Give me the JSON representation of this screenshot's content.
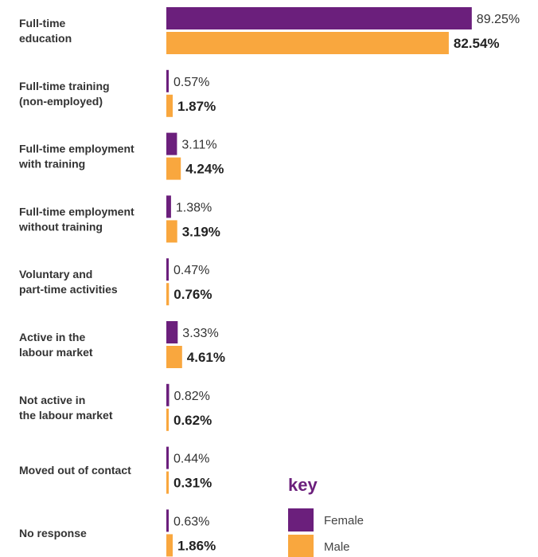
{
  "chart_data": {
    "type": "bar",
    "orientation": "horizontal",
    "categories": [
      [
        "Full-time",
        "education"
      ],
      [
        "Full-time training",
        "(non-employed)"
      ],
      [
        "Full-time employment",
        "with training"
      ],
      [
        "Full-time employment",
        "without training"
      ],
      [
        "Voluntary and",
        "part-time activities"
      ],
      [
        "Active in the",
        "labour market"
      ],
      [
        "Not active in",
        "the labour market"
      ],
      [
        "Moved out of contact"
      ],
      [
        "No response"
      ]
    ],
    "series": [
      {
        "name": "Female",
        "color": "#6b1f7c",
        "values": [
          89.25,
          0.57,
          3.11,
          1.38,
          0.47,
          3.33,
          0.82,
          0.44,
          0.63
        ],
        "labels": [
          "89.25%",
          "0.57%",
          "3.11%",
          "1.38%",
          "0.47%",
          "3.33%",
          "0.82%",
          "0.44%",
          "0.63%"
        ]
      },
      {
        "name": "Male",
        "color": "#f9a73e",
        "values": [
          82.54,
          1.87,
          4.24,
          3.19,
          0.76,
          4.61,
          0.62,
          0.31,
          1.86
        ],
        "labels": [
          "82.54%",
          "1.87%",
          "4.24%",
          "3.19%",
          "0.76%",
          "4.61%",
          "0.62%",
          "0.31%",
          "1.86%"
        ]
      }
    ],
    "xlim": [
      0,
      100
    ],
    "grid": false,
    "legend": {
      "title": "key",
      "title_color": "#6b1f7c",
      "position": "bottom-right",
      "items": [
        "Female",
        "Male"
      ]
    }
  }
}
